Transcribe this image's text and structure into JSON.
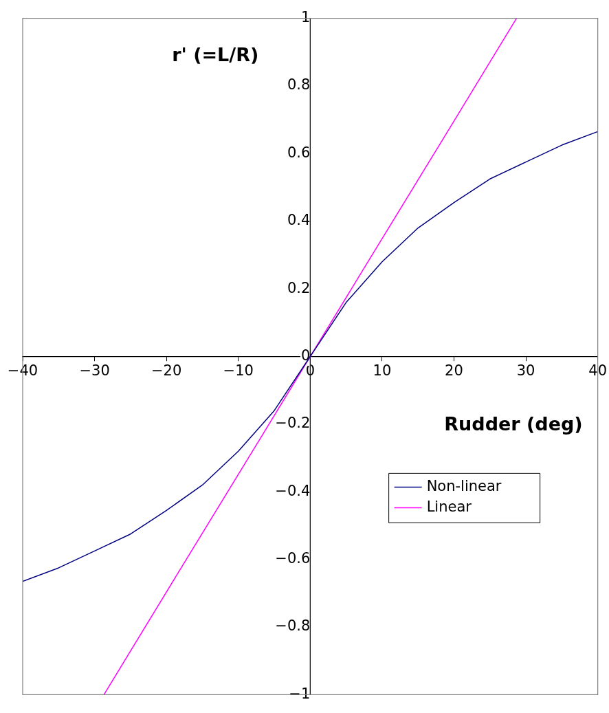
{
  "chart_data": {
    "type": "line",
    "xlabel": "Rudder (deg)",
    "ylabel": "r' (=L/R)",
    "xlim": [
      -40,
      40
    ],
    "ylim": [
      -1,
      1
    ],
    "xticks": [
      -40,
      -30,
      -20,
      -10,
      0,
      10,
      20,
      30,
      40
    ],
    "yticks": [
      -1,
      -0.8,
      -0.6,
      -0.4,
      -0.2,
      0,
      0.2,
      0.4,
      0.6,
      0.8,
      1
    ],
    "grid": false,
    "legend": "bottom right",
    "marker": "none",
    "line_style": "solid",
    "series": [
      {
        "name": "Non-linear",
        "color": "#000080",
        "x": [
          -40,
          -35,
          -30,
          -25,
          -20,
          -15,
          -10,
          -5,
          0,
          5,
          10,
          15,
          20,
          25,
          30,
          35,
          40
        ],
        "values": [
          -0.665,
          -0.625,
          -0.575,
          -0.525,
          -0.455,
          -0.38,
          -0.28,
          -0.16,
          0,
          0.16,
          0.28,
          0.38,
          0.455,
          0.525,
          0.575,
          0.625,
          0.665
        ]
      },
      {
        "name": "Linear",
        "color": "#ff00ff",
        "x": [
          -28.7,
          -18.7,
          -7,
          0,
          7,
          18.7,
          28.7
        ],
        "values": [
          -1,
          -0.651,
          -0.244,
          0,
          0.244,
          0.651,
          1
        ]
      }
    ]
  }
}
